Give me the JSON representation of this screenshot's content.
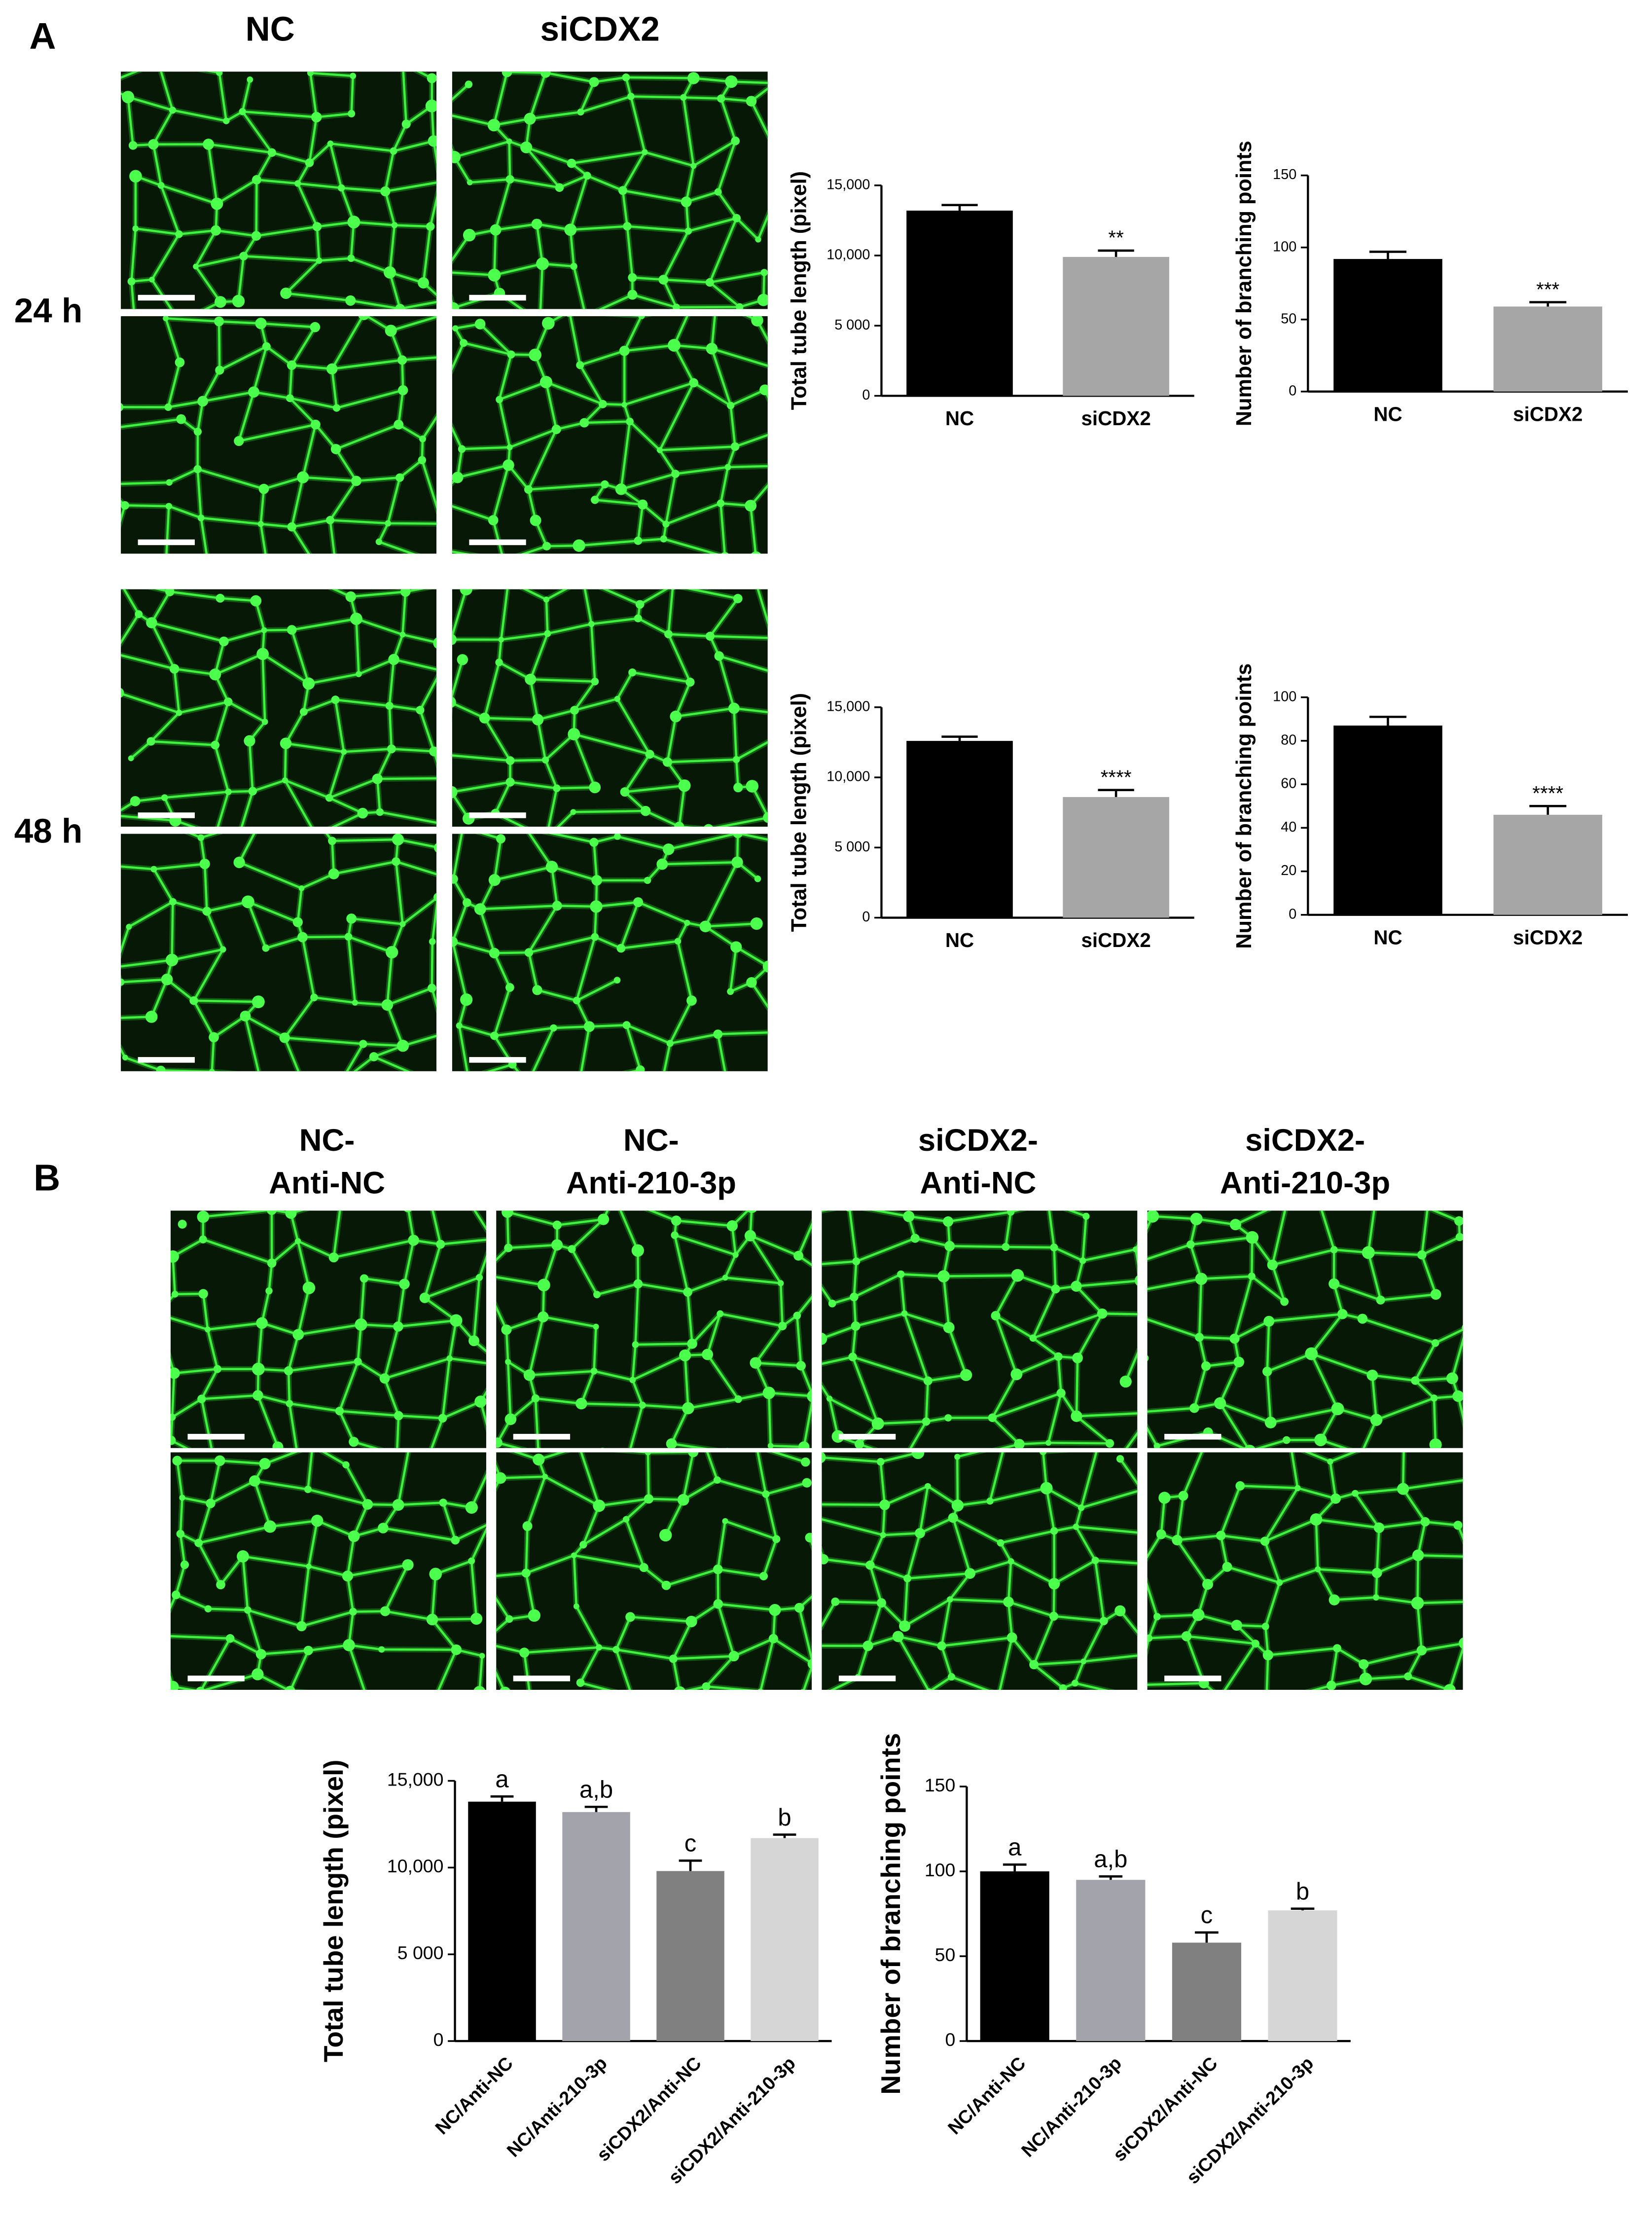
{
  "figure": {
    "panel_labels": [
      "A",
      "B"
    ],
    "a_columns": [
      "NC",
      "siCDX2"
    ],
    "a_rows": [
      "24 h",
      "48 h"
    ],
    "b_columns": [
      [
        "NC-",
        "Anti-NC"
      ],
      [
        "NC-",
        "Anti-210-3p"
      ],
      [
        "siCDX2-",
        "Anti-NC"
      ],
      [
        "siCDX2-",
        "Anti-210-3p"
      ]
    ]
  },
  "chart_data": [
    {
      "type": "bar",
      "y_label": "Total tube length (pixel)",
      "categories": [
        "NC",
        "siCDX2"
      ],
      "values": [
        13200,
        9900
      ],
      "errors": [
        400,
        450
      ],
      "annotations": [
        null,
        "**"
      ],
      "colors": [
        "#000000",
        "#a6a6a6"
      ],
      "ylim": [
        0,
        15000
      ],
      "yticks": [
        0,
        {
          "value": 5000,
          "label": "5 000"
        },
        {
          "value": 10000,
          "label": "10,000"
        },
        {
          "value": 15000,
          "label": "15,000"
        }
      ]
    },
    {
      "type": "bar",
      "y_label": "Number of branching points",
      "categories": [
        "NC",
        "siCDX2"
      ],
      "values": [
        92,
        59
      ],
      "errors": [
        5,
        3
      ],
      "annotations": [
        null,
        "***"
      ],
      "colors": [
        "#000000",
        "#a6a6a6"
      ],
      "ylim": [
        0,
        150
      ],
      "yticks": [
        0,
        50,
        100,
        150
      ]
    },
    {
      "type": "bar",
      "y_label": "Total tube length (pixel)",
      "categories": [
        "NC",
        "siCDX2"
      ],
      "values": [
        12600,
        8600
      ],
      "errors": [
        300,
        500
      ],
      "annotations": [
        null,
        "****"
      ],
      "colors": [
        "#000000",
        "#a6a6a6"
      ],
      "ylim": [
        0,
        15000
      ],
      "yticks": [
        0,
        {
          "value": 5000,
          "label": "5 000"
        },
        {
          "value": 10000,
          "label": "10,000"
        },
        {
          "value": 15000,
          "label": "15,000"
        }
      ]
    },
    {
      "type": "bar",
      "y_label": "Number of branching points",
      "categories": [
        "NC",
        "siCDX2"
      ],
      "values": [
        87,
        46
      ],
      "errors": [
        4,
        4
      ],
      "annotations": [
        null,
        "****"
      ],
      "colors": [
        "#000000",
        "#a6a6a6"
      ],
      "ylim": [
        0,
        100
      ],
      "yticks": [
        0,
        20,
        40,
        60,
        80,
        100
      ]
    },
    {
      "type": "bar",
      "y_label": "Total tube length (pixel)",
      "categories": [
        "NC/Anti-NC",
        "NC/Anti-210-3p",
        "siCDX2/Anti-NC",
        "siCDX2/Anti-210-3p"
      ],
      "values": [
        13800,
        13200,
        9800,
        11700
      ],
      "errors": [
        300,
        300,
        600,
        200
      ],
      "annotations": [
        "a",
        "a,b",
        "c",
        "b"
      ],
      "colors": [
        "#000000",
        "#a3a3ab",
        "#808080",
        "#d6d6d6"
      ],
      "ylim": [
        0,
        15000
      ],
      "yticks": [
        0,
        {
          "value": 5000,
          "label": "5 000"
        },
        {
          "value": 10000,
          "label": "10,000"
        },
        {
          "value": 15000,
          "label": "15,000"
        }
      ]
    },
    {
      "type": "bar",
      "y_label": "Number of branching points",
      "categories": [
        "NC/Anti-NC",
        "NC/Anti-210-3p",
        "siCDX2/Anti-NC",
        "siCDX2/Anti-210-3p"
      ],
      "values": [
        100,
        95,
        58,
        77
      ],
      "errors": [
        4,
        2,
        6,
        1
      ],
      "annotations": [
        "a",
        "a,b",
        "c",
        "b"
      ],
      "colors": [
        "#000000",
        "#a3a3ab",
        "#808080",
        "#d6d6d6"
      ],
      "ylim": [
        0,
        150
      ],
      "yticks": [
        0,
        50,
        100,
        150
      ]
    }
  ]
}
